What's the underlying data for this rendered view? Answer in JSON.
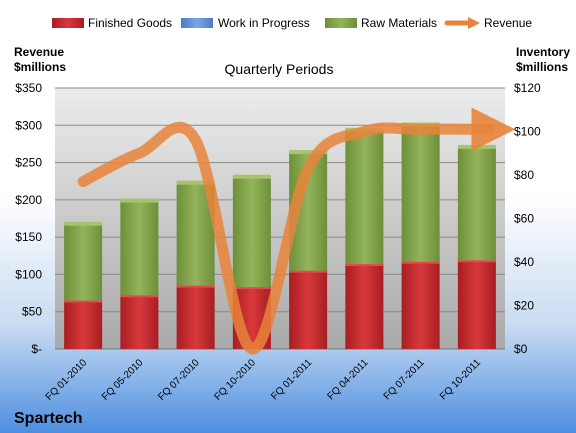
{
  "chart_data": {
    "type": "bar",
    "title": "Quarterly Periods",
    "company": "Spartech",
    "y_left_label": [
      "Revenue",
      "$millions"
    ],
    "y_right_label": [
      "Inventory",
      "$millions"
    ],
    "categories": [
      "FQ 01-2010",
      "FQ 05-2010",
      "FQ 07-2010",
      "FQ 10-2010",
      "FQ 01-2011",
      "FQ 04-2011",
      "FQ 07-2011",
      "FQ 10-2011"
    ],
    "y_left_ticks": [
      "$-",
      "$50",
      "$100",
      "$150",
      "$200",
      "$250",
      "$300",
      "$350"
    ],
    "y_right_ticks": [
      "$0",
      "$20",
      "$40",
      "$60",
      "$80",
      "$100",
      "$120"
    ],
    "y_left_range": [
      0,
      350
    ],
    "y_right_range": [
      0,
      120
    ],
    "series": [
      {
        "name": "Finished Goods",
        "axis": "left",
        "kind": "stacked-bar",
        "color": "#c0262b",
        "values": [
          65,
          72,
          85,
          83,
          105,
          114,
          117,
          119
        ]
      },
      {
        "name": "Work in Progress",
        "axis": "left",
        "kind": "stacked-bar",
        "color": "#5b8fd6",
        "values": [
          0,
          0,
          0,
          0,
          0,
          0,
          0,
          0
        ]
      },
      {
        "name": "Raw Materials",
        "axis": "left",
        "kind": "stacked-bar",
        "color": "#7fa046",
        "values": [
          103,
          127,
          138,
          148,
          159,
          180,
          184,
          152
        ]
      },
      {
        "name": "Revenue",
        "axis": "right",
        "kind": "smooth-line",
        "color": "#e8843a",
        "values": [
          77,
          90,
          96,
          0,
          83,
          100,
          101,
          101
        ]
      }
    ],
    "legend": "top",
    "grid": true
  }
}
